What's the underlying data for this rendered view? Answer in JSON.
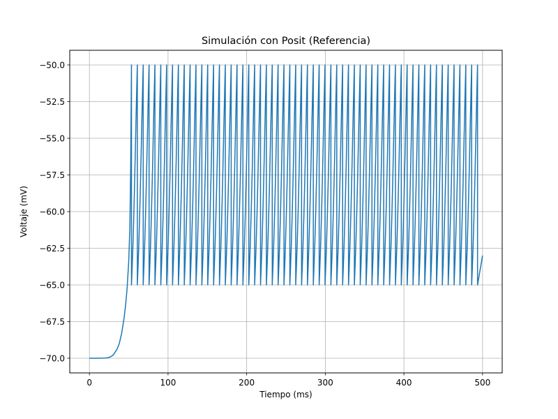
{
  "chart_data": {
    "type": "line",
    "title": "Simulación con Posit (Referencia)",
    "xlabel": "Tiempo (ms)",
    "ylabel": "Voltaje (mV)",
    "xlim": [
      -25,
      525
    ],
    "ylim": [
      -71,
      -49
    ],
    "xticks": [
      0,
      100,
      200,
      300,
      400,
      500
    ],
    "xtick_labels": [
      "0",
      "100",
      "200",
      "300",
      "400",
      "500"
    ],
    "yticks": [
      -70.0,
      -67.5,
      -65.0,
      -62.5,
      -60.0,
      -57.5,
      -55.0,
      -52.5,
      -50.0
    ],
    "ytick_labels": [
      "−70.0",
      "−67.5",
      "−65.0",
      "−62.5",
      "−60.0",
      "−57.5",
      "−55.0",
      "−52.5",
      "−50.0"
    ],
    "grid": true,
    "series": [
      {
        "color": "#1f77b4",
        "resting_potential": -70.0,
        "threshold": -50.0,
        "reset_potential": -65.0,
        "first_spike_time": 53.5,
        "spike_interval": 7.46,
        "t_end": 500,
        "final_value": -63.0,
        "rise_curve": [
          [
            0,
            -70.0
          ],
          [
            10,
            -70.0
          ],
          [
            20,
            -69.99
          ],
          [
            25,
            -69.95
          ],
          [
            30,
            -69.8
          ],
          [
            35,
            -69.4
          ],
          [
            38,
            -69.0
          ],
          [
            41,
            -68.3
          ],
          [
            44,
            -67.3
          ],
          [
            46,
            -66.4
          ],
          [
            48,
            -65.2
          ],
          [
            50,
            -63.4
          ],
          [
            51.5,
            -61.0
          ],
          [
            52.5,
            -57.0
          ],
          [
            53.5,
            -50.0
          ]
        ],
        "interval_curve": [
          [
            0,
            -65.0
          ],
          [
            0.1,
            -64.0
          ],
          [
            0.25,
            -62.3
          ],
          [
            0.4,
            -60.2
          ],
          [
            0.55,
            -57.8
          ],
          [
            0.7,
            -55.1
          ],
          [
            0.82,
            -52.9
          ],
          [
            0.92,
            -51.2
          ],
          [
            1.0,
            -50.0
          ]
        ]
      }
    ]
  }
}
